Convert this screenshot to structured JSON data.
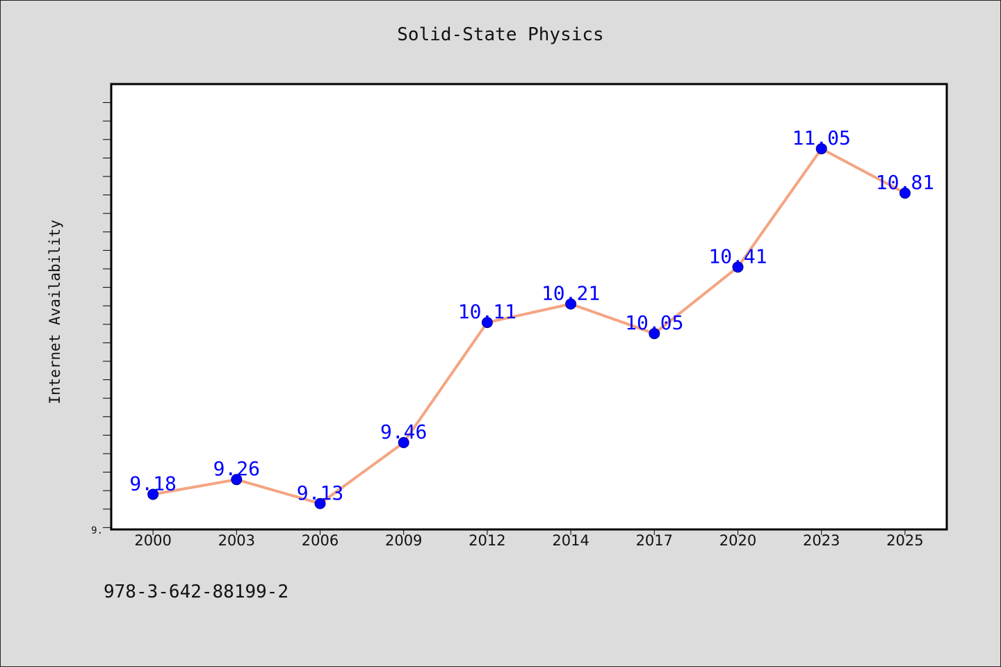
{
  "title": "Solid-State Physics",
  "footer_text": "978-3-642-88199-2",
  "chart_data": {
    "type": "line",
    "title": "Solid-State Physics",
    "xlabel": "",
    "ylabel": "Internet Availability",
    "categories": [
      "2000",
      "2003",
      "2006",
      "2009",
      "2012",
      "2014",
      "2017",
      "2020",
      "2023",
      "2025"
    ],
    "series": [
      {
        "values": [
          9.18,
          9.26,
          9.13,
          9.46,
          10.11,
          10.21,
          10.05,
          10.41,
          11.05,
          10.81
        ],
        "labels": [
          "9.18",
          "9.26",
          "9.13",
          "9.46",
          "10.11",
          "10.21",
          "10.05",
          "10.41",
          "11.05",
          "10.81"
        ],
        "line_color": "#f4a582",
        "marker_color": "#0000ff",
        "label_color": "#0000ff"
      }
    ],
    "ylim": [
      8.99,
      11.4
    ],
    "y_tick_labels": [
      "9."
    ],
    "grid": false,
    "legend": "none"
  }
}
